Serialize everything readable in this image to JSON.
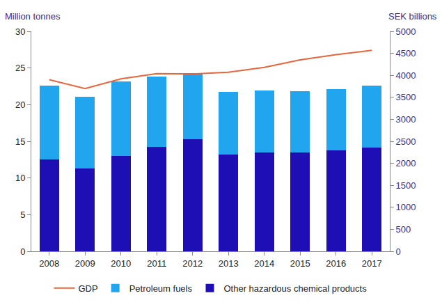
{
  "chart_data": {
    "type": "bar",
    "stacked": true,
    "legend": "bottom",
    "grid": false,
    "ylabel": "Million tonnes",
    "y2label": "SEK billions",
    "categories": [
      "2008",
      "2009",
      "2010",
      "2011",
      "2012",
      "2013",
      "2014",
      "2015",
      "2016",
      "2017"
    ],
    "series": [
      {
        "name": "Other hazardous chemical products",
        "type": "bar",
        "color": "#1e0fb4",
        "values": [
          12.5,
          11.3,
          13.0,
          14.2,
          15.3,
          13.2,
          13.5,
          13.5,
          13.8,
          14.1
        ]
      },
      {
        "name": "Petroleum fuels",
        "type": "bar",
        "color": "#21a5ee",
        "values": [
          10.1,
          9.8,
          10.2,
          9.6,
          9.0,
          8.5,
          8.4,
          8.3,
          8.3,
          8.5
        ]
      },
      {
        "name": "GDP",
        "type": "line",
        "axis": "y2",
        "color": "#e8663c",
        "values": [
          3900,
          3700,
          3920,
          4040,
          4030,
          4070,
          4180,
          4350,
          4470,
          4570
        ]
      }
    ],
    "ylim": [
      0,
      30
    ],
    "yticks": [
      0,
      5,
      10,
      15,
      20,
      25,
      30
    ],
    "y2lim": [
      0,
      5000
    ],
    "y2ticks": [
      0,
      500,
      1000,
      1500,
      2000,
      2500,
      3000,
      3500,
      4000,
      4500,
      5000
    ]
  }
}
